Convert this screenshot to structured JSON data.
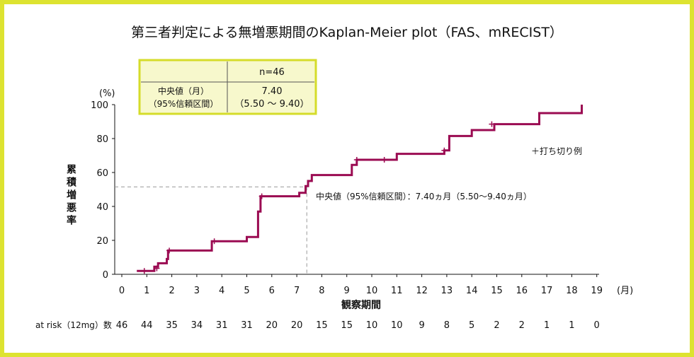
{
  "chart_data": {
    "type": "line",
    "title": "第三者判定による無増悪期間のKaplan-Meier plot（FAS、mRECIST）",
    "xlabel": "観察期間",
    "x_unit": "(月)",
    "ylabel": "累積増悪率",
    "y_unit": "(%)",
    "xlim": [
      0,
      19
    ],
    "ylim": [
      0,
      100
    ],
    "x_ticks": [
      "0",
      "1",
      "2",
      "3",
      "4",
      "5",
      "6",
      "7",
      "8",
      "9",
      "10",
      "11",
      "12",
      "13",
      "14",
      "15",
      "16",
      "17",
      "18",
      "19"
    ],
    "y_ticks": [
      "0",
      "20",
      "40",
      "60",
      "80",
      "100"
    ],
    "grid": false,
    "line_color": "#9b0b52",
    "step_points": [
      [
        0.6,
        2
      ],
      [
        1.3,
        2
      ],
      [
        1.3,
        4.5
      ],
      [
        1.45,
        4.5
      ],
      [
        1.45,
        6.5
      ],
      [
        1.8,
        6.5
      ],
      [
        1.8,
        9
      ],
      [
        1.85,
        9
      ],
      [
        1.85,
        14
      ],
      [
        3.6,
        14
      ],
      [
        3.6,
        19.5
      ],
      [
        5.0,
        19.5
      ],
      [
        5.0,
        22
      ],
      [
        5.45,
        22
      ],
      [
        5.45,
        37
      ],
      [
        5.55,
        37
      ],
      [
        5.55,
        46
      ],
      [
        7.1,
        46
      ],
      [
        7.1,
        48
      ],
      [
        7.35,
        48
      ],
      [
        7.35,
        52
      ],
      [
        7.45,
        52
      ],
      [
        7.45,
        55
      ],
      [
        7.6,
        55
      ],
      [
        7.6,
        58.5
      ],
      [
        9.2,
        58.5
      ],
      [
        9.2,
        64.5
      ],
      [
        9.4,
        64.5
      ],
      [
        9.4,
        67.5
      ],
      [
        11.0,
        67.5
      ],
      [
        11.0,
        71
      ],
      [
        12.9,
        71
      ],
      [
        12.9,
        73
      ],
      [
        13.1,
        73
      ],
      [
        13.1,
        81.5
      ],
      [
        14.0,
        81.5
      ],
      [
        14.0,
        85
      ],
      [
        14.9,
        85
      ],
      [
        14.9,
        88.5
      ],
      [
        16.7,
        88.5
      ],
      [
        16.7,
        95
      ],
      [
        18.4,
        95
      ],
      [
        18.4,
        100
      ]
    ],
    "censor_marks": [
      [
        0.9,
        2
      ],
      [
        1.4,
        3.5
      ],
      [
        1.9,
        14
      ],
      [
        3.7,
        19.5
      ],
      [
        5.6,
        46
      ],
      [
        9.4,
        67.5
      ],
      [
        10.5,
        67.5
      ],
      [
        12.9,
        73
      ],
      [
        14.8,
        88.5
      ]
    ],
    "median": {
      "x": 7.4,
      "y": 51.5,
      "label": "中央値（95%信頼区間）：7.40ヵ月（5.50〜9.40ヵ月）"
    },
    "legend": {
      "censor_label": "＋打ち切り例",
      "position": "top-right"
    }
  },
  "info_box": {
    "n_label": "n=46",
    "row_label_1": "中央値（月）",
    "row_label_2": "（95%信頼区間）",
    "value_1": "7.40",
    "value_2": "（5.50 ～ 9.40）"
  },
  "at_risk": {
    "label": "at risk（12mg）数",
    "values": [
      "46",
      "44",
      "35",
      "34",
      "31",
      "31",
      "20",
      "20",
      "15",
      "15",
      "10",
      "10",
      "9",
      "8",
      "5",
      "2",
      "2",
      "1",
      "1",
      "0"
    ]
  }
}
